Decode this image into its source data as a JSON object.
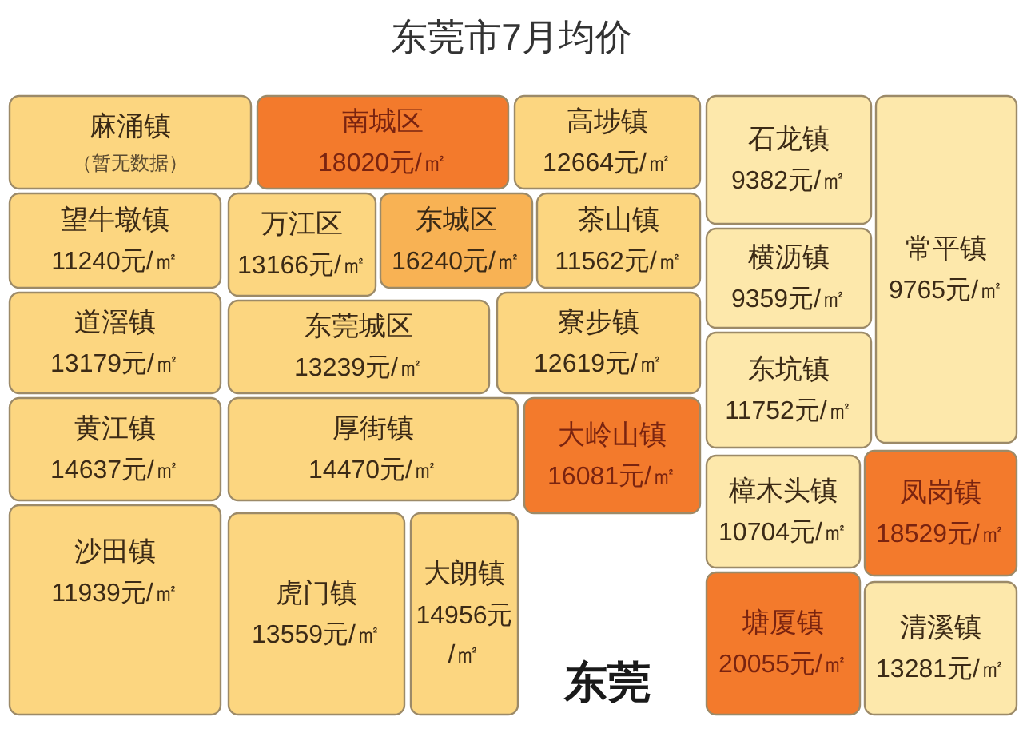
{
  "chart_data": {
    "type": "other",
    "title": "东莞市7月均价",
    "categories": [
      "麻涌镇",
      "南城区",
      "高埗镇",
      "石龙镇",
      "常平镇",
      "望牛墩镇",
      "万江区",
      "东城区",
      "茶山镇",
      "横沥镇",
      "道滘镇",
      "东莞城区",
      "寮步镇",
      "东坑镇",
      "黄江镇",
      "厚街镇",
      "大岭山镇",
      "樟木头镇",
      "凤岗镇",
      "沙田镇",
      "虎门镇",
      "大朗镇",
      "塘厦镇",
      "清溪镇"
    ],
    "values": [
      null,
      18020,
      12664,
      9382,
      9765,
      11240,
      13166,
      16240,
      11562,
      9359,
      13179,
      13239,
      12619,
      11752,
      14637,
      14470,
      16081,
      10704,
      18529,
      11939,
      13559,
      14956,
      20055,
      13281
    ],
    "value_labels": [
      "（暂无数据）",
      "18020元/㎡",
      "12664元/㎡",
      "9382元/㎡",
      "9765元/㎡",
      "11240元/㎡",
      "13166元/㎡",
      "16240元/㎡",
      "11562元/㎡",
      "9359元/㎡",
      "13179元/㎡",
      "13239元/㎡",
      "12619元/㎡",
      "11752元/㎡",
      "14637元/㎡",
      "14470元/㎡",
      "16081元/㎡",
      "10704元/㎡",
      "18529元/㎡",
      "11939元/㎡",
      "13559元/㎡",
      "14956元/㎡",
      "20055元/㎡",
      "13281元/㎡"
    ],
    "colors": [
      "#fcd680",
      "#f37a2c",
      "#fcd680",
      "#fde8ab",
      "#fde8ab",
      "#fcd680",
      "#fcd680",
      "#f8b254",
      "#fcd680",
      "#fde8ab",
      "#fcd680",
      "#fcd680",
      "#fcd680",
      "#fde8ab",
      "#fcd680",
      "#fcd680",
      "#f37a2c",
      "#fde8ab",
      "#f37a2c",
      "#fcd680",
      "#fcd680",
      "#fcd680",
      "#f37a2c",
      "#fde8ab"
    ],
    "annotations": [
      "东莞"
    ]
  }
}
